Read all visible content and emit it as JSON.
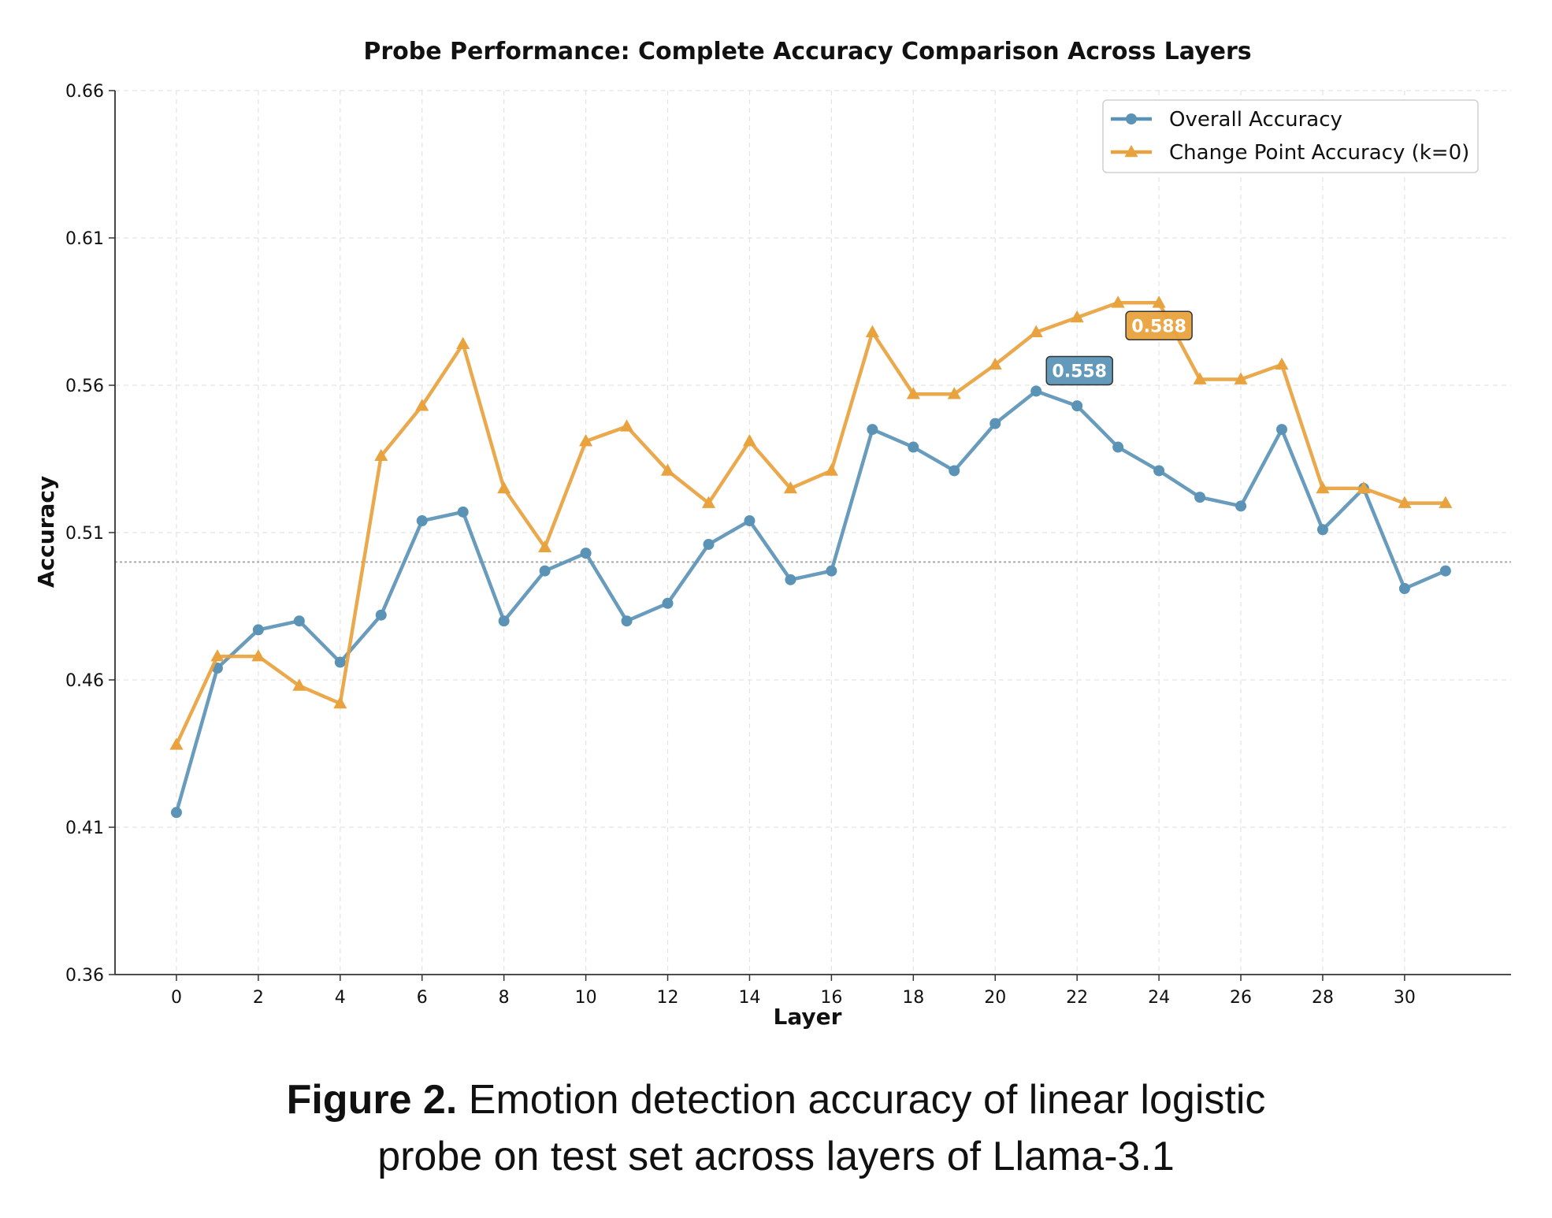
{
  "chart_data": {
    "type": "line",
    "title": "Probe Performance: Complete Accuracy Comparison Across Layers",
    "xlabel": "Layer",
    "ylabel": "Accuracy",
    "ylim": [
      0.36,
      0.66
    ],
    "xlim": [
      -1.5,
      32.6
    ],
    "yticks": [
      "0.36",
      "0.41",
      "0.46",
      "0.51",
      "0.56",
      "0.61",
      "0.66"
    ],
    "xticks": [
      "0",
      "2",
      "4",
      "6",
      "8",
      "10",
      "12",
      "14",
      "16",
      "18",
      "20",
      "22",
      "24",
      "26",
      "28",
      "30"
    ],
    "grid": true,
    "legend_position": "top-right",
    "reference_line": 0.5,
    "x": [
      0,
      1,
      2,
      3,
      4,
      5,
      6,
      7,
      8,
      9,
      10,
      11,
      12,
      13,
      14,
      15,
      16,
      17,
      18,
      19,
      20,
      21,
      22,
      23,
      24,
      25,
      26,
      27,
      28,
      29,
      30,
      31
    ],
    "series": [
      {
        "name": "Overall Accuracy",
        "color": "#5b93b6",
        "marker": "circle",
        "values": [
          0.415,
          0.464,
          0.477,
          0.48,
          0.466,
          0.482,
          0.514,
          0.517,
          0.48,
          0.497,
          0.503,
          0.48,
          0.486,
          0.506,
          0.514,
          0.494,
          0.497,
          0.545,
          0.539,
          0.531,
          0.547,
          0.558,
          0.553,
          0.539,
          0.531,
          0.522,
          0.519,
          0.545,
          0.511,
          0.525,
          0.491,
          0.497
        ]
      },
      {
        "name": "Change Point Accuracy (k=0)",
        "color": "#e8a23e",
        "marker": "triangle",
        "values": [
          0.438,
          0.468,
          0.468,
          0.458,
          0.452,
          0.536,
          0.553,
          0.574,
          0.525,
          0.505,
          0.541,
          0.546,
          0.531,
          0.52,
          0.541,
          0.525,
          0.531,
          0.578,
          0.557,
          0.557,
          0.567,
          0.578,
          0.583,
          0.588,
          0.588,
          0.562,
          0.562,
          0.567,
          0.525,
          0.525,
          0.52,
          0.52
        ]
      }
    ],
    "annotations": [
      {
        "text": "0.558",
        "series": 0,
        "x": 21
      },
      {
        "text": "0.588",
        "series": 1,
        "x": 24
      }
    ]
  },
  "caption": {
    "label": "Figure 2.",
    "line1": "Emotion detection accuracy of linear logistic",
    "line2": "probe on test set across layers of Llama-3.1"
  }
}
